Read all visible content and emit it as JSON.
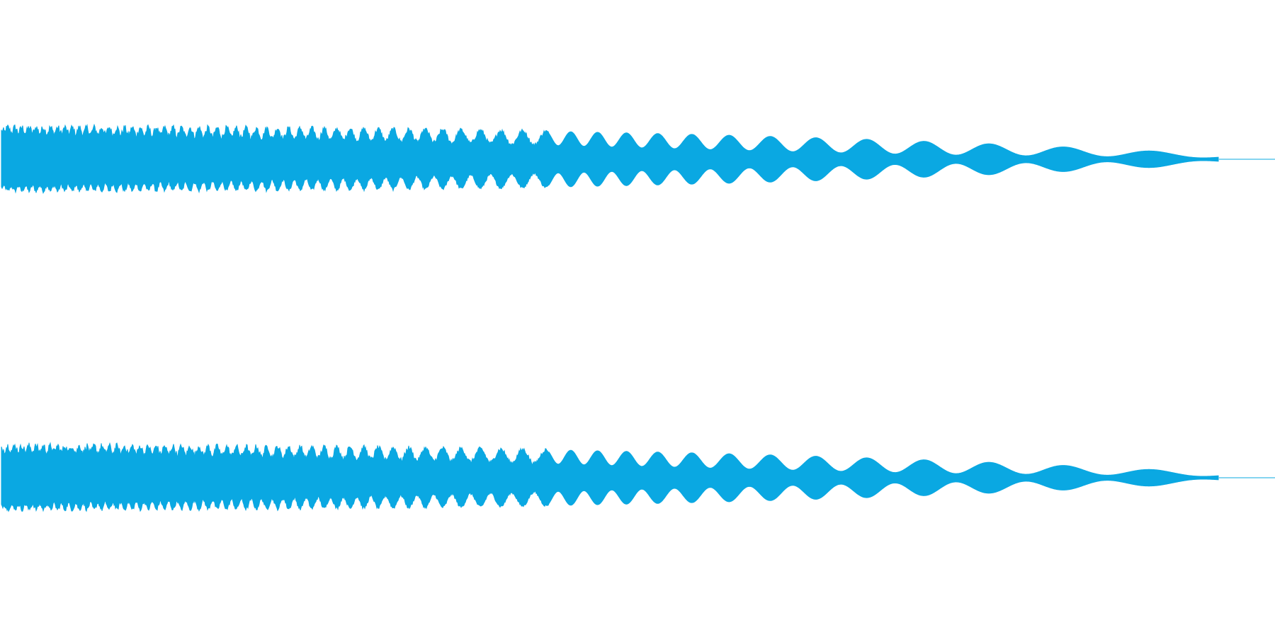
{
  "waveform": {
    "color": "#0aa8e2",
    "background": "#ffffff",
    "channels": [
      {
        "name": "channel-1",
        "envelope_profile": "top"
      },
      {
        "name": "channel-2",
        "envelope_profile": "bottom"
      }
    ],
    "signal_end_fraction": 0.956
  }
}
